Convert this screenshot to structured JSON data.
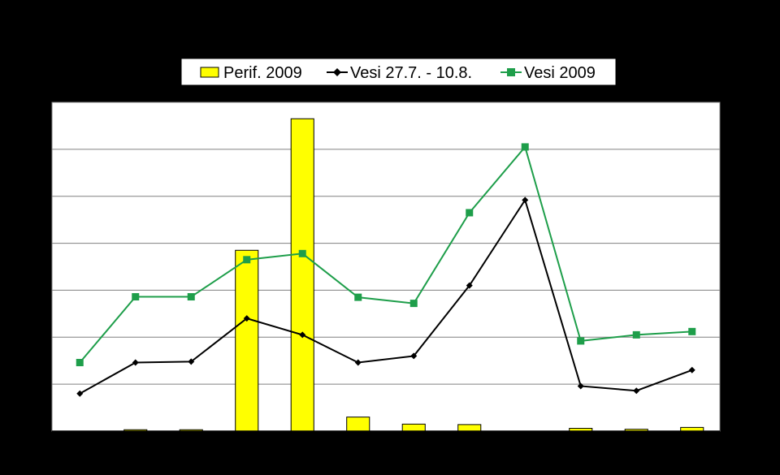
{
  "chart_data": {
    "type": "bar",
    "title": "",
    "xlabel": "",
    "ylabel": "",
    "categories": [
      "",
      "",
      "",
      "",
      "",
      "",
      "",
      "",
      "",
      "",
      "",
      ""
    ],
    "ylim": [
      0,
      7
    ],
    "grid": true,
    "legend_position": "top",
    "series": [
      {
        "name": "Perif. 2009",
        "kind": "bar",
        "color": "#FFFF00",
        "values": [
          0.0,
          0.03,
          0.03,
          3.85,
          6.65,
          0.3,
          0.15,
          0.14,
          0.0,
          0.06,
          0.04,
          0.08
        ]
      },
      {
        "name": "Vesi 27.7. - 10.8.",
        "kind": "line",
        "color": "#000000",
        "marker": "diamond",
        "values": [
          0.8,
          1.46,
          1.48,
          2.4,
          2.05,
          1.46,
          1.6,
          3.1,
          4.92,
          0.96,
          0.86,
          1.3
        ]
      },
      {
        "name": "Vesi 2009",
        "kind": "line",
        "color": "#1E9E4A",
        "marker": "square",
        "values": [
          1.46,
          2.86,
          2.86,
          3.65,
          3.78,
          2.85,
          2.72,
          4.65,
          6.05,
          1.92,
          2.05,
          2.12
        ]
      }
    ]
  }
}
